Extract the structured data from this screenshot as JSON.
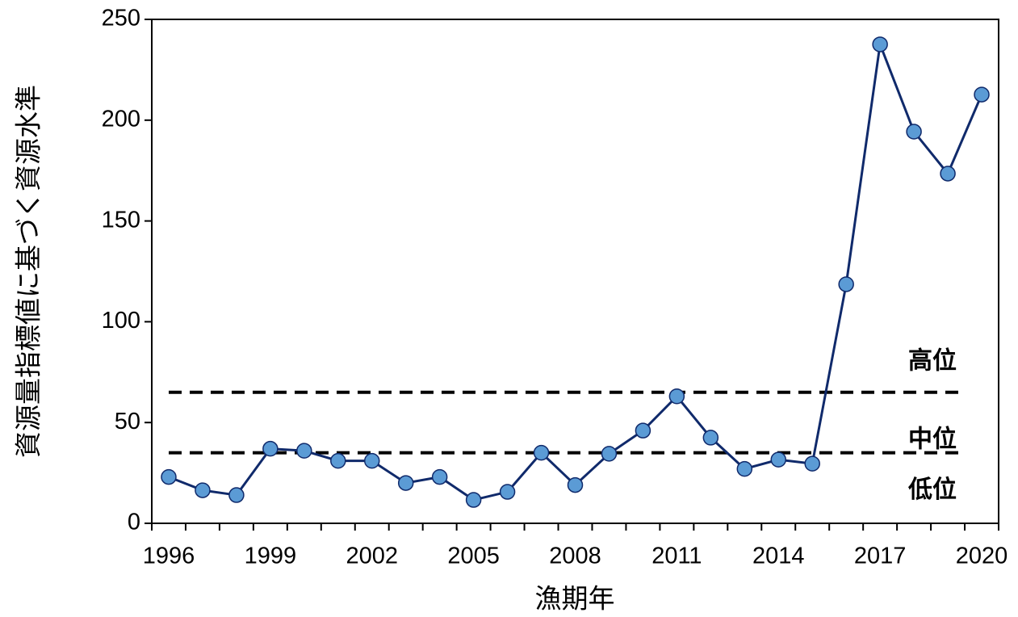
{
  "chart_data": {
    "type": "line",
    "x_label": "漁期年",
    "y_label": "資源量指標値に基づく資源水準",
    "categories": [
      "1996",
      null,
      null,
      "1999",
      null,
      null,
      "2002",
      null,
      null,
      "2005",
      null,
      null,
      "2008",
      null,
      null,
      "2011",
      null,
      null,
      "2014",
      null,
      null,
      "2017",
      null,
      null,
      "2020"
    ],
    "series": [
      {
        "color": "#102a6b",
        "marker_color": "#5b9bd5",
        "values": [
          23,
          16.4,
          14,
          37,
          36,
          31,
          31,
          20,
          23,
          11.6,
          15.6,
          35,
          19,
          34.5,
          46,
          63,
          42.5,
          27,
          31.6,
          29.6,
          118.6,
          237.6,
          194.3,
          173.5,
          212.7
        ]
      }
    ],
    "reference_lines": [
      {
        "value": 65,
        "label": "高位"
      },
      {
        "value": 35,
        "label": "中位"
      }
    ],
    "annotations": [
      "低位"
    ],
    "ylim": [
      0,
      250
    ],
    "yticks": [
      0,
      50,
      100,
      150,
      200,
      250
    ],
    "grid": false
  }
}
